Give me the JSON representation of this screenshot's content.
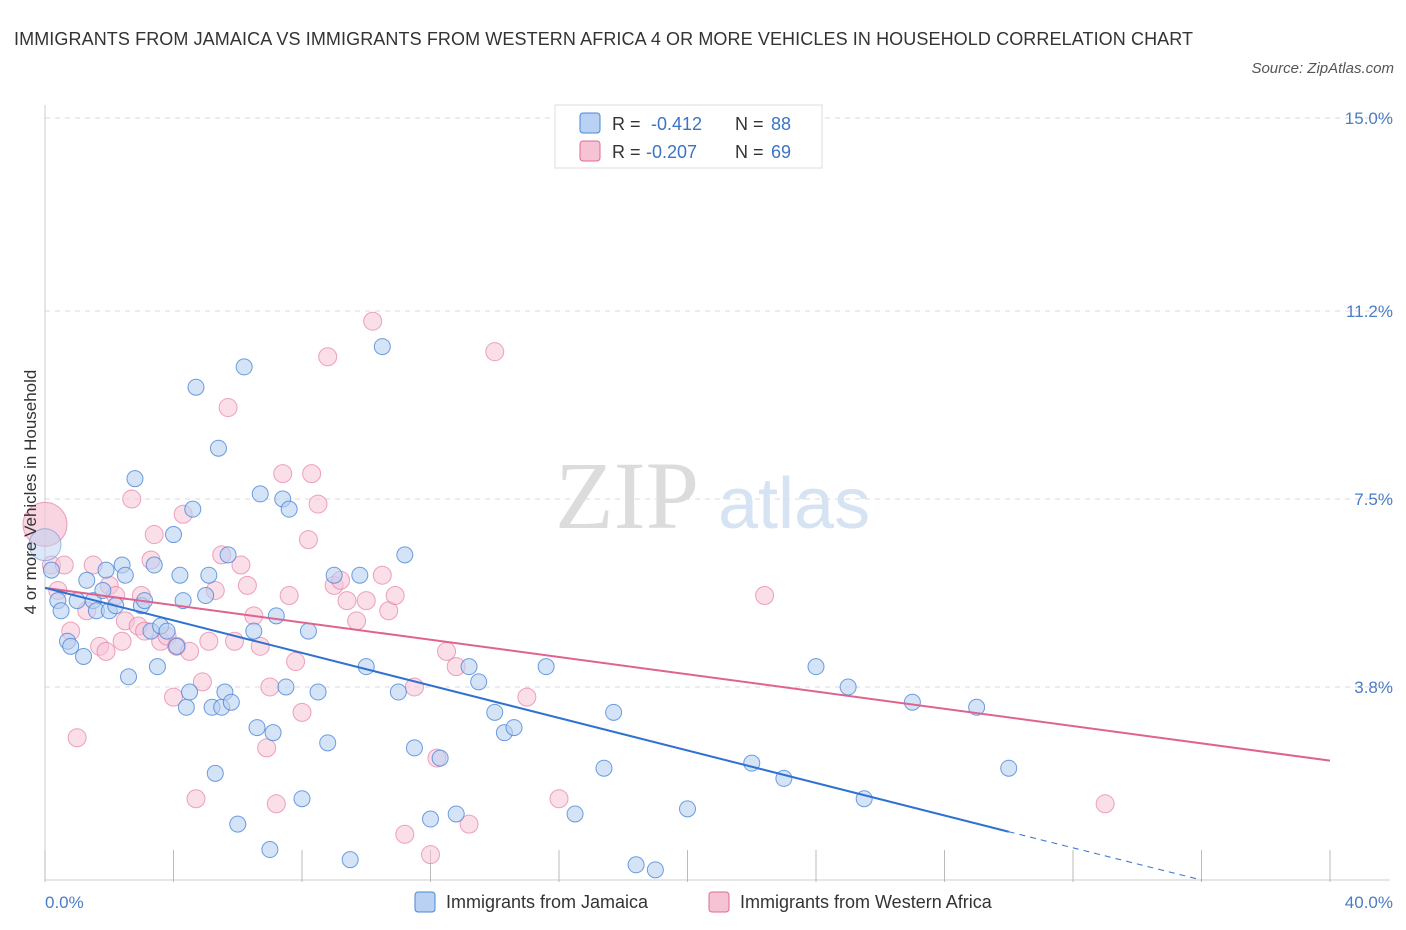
{
  "title": "IMMIGRANTS FROM JAMAICA VS IMMIGRANTS FROM WESTERN AFRICA 4 OR MORE VEHICLES IN HOUSEHOLD CORRELATION CHART",
  "source": "Source: ZipAtlas.com",
  "watermark": {
    "zip": "ZIP",
    "atlas": "atlas"
  },
  "colors": {
    "jamaica": "#4a86d8",
    "jamaica_fill": "#b9d1f2",
    "jamaica_line": "#2f72d0",
    "western_africa": "#e26a96",
    "western_africa_fill": "#f6c3d5",
    "western_africa_line": "#e0628f",
    "tick": "#4a7cc7",
    "grid": "#d9d9d9"
  },
  "legend_box": {
    "rows": [
      {
        "r_label": "R =",
        "r_value": "-0.412",
        "n_label": "N =",
        "n_value": "88"
      },
      {
        "r_label": "R =",
        "r_value": "-0.207",
        "n_label": "N =",
        "n_value": "69"
      }
    ]
  },
  "chart_data": {
    "type": "scatter",
    "xlabel": "",
    "ylabel": "4 or more Vehicles in Household",
    "xlim": [
      0,
      40
    ],
    "ylim": [
      0,
      15
    ],
    "x_tick_labels": [
      "0.0%",
      "40.0%"
    ],
    "y_ticks": [
      3.8,
      7.5,
      11.2,
      15.0
    ],
    "y_tick_labels": [
      "3.8%",
      "7.5%",
      "11.2%",
      "15.0%"
    ],
    "grid": "horizontal dashed",
    "legend_position": "bottom",
    "series": [
      {
        "name": "Immigrants from Jamaica",
        "R": -0.412,
        "N": 88,
        "trend": {
          "x0": 0,
          "y0": 5.75,
          "x1": 30.0,
          "y1": 0.95,
          "dashed_to_x": 36.0,
          "dashed_to_y": 0.0
        },
        "points": [
          [
            0.2,
            6.1
          ],
          [
            0.4,
            5.5
          ],
          [
            0.5,
            5.3
          ],
          [
            0.7,
            4.7
          ],
          [
            0.8,
            4.6
          ],
          [
            1.0,
            5.5
          ],
          [
            1.2,
            4.4
          ],
          [
            1.3,
            5.9
          ],
          [
            1.5,
            5.5
          ],
          [
            1.6,
            5.3
          ],
          [
            1.8,
            5.7
          ],
          [
            1.9,
            6.1
          ],
          [
            2.0,
            5.3
          ],
          [
            2.2,
            5.4
          ],
          [
            2.4,
            6.2
          ],
          [
            2.5,
            6.0
          ],
          [
            2.6,
            4.0
          ],
          [
            2.8,
            7.9
          ],
          [
            3.0,
            5.4
          ],
          [
            3.1,
            5.5
          ],
          [
            3.3,
            4.9
          ],
          [
            3.4,
            6.2
          ],
          [
            3.5,
            4.2
          ],
          [
            3.6,
            5.0
          ],
          [
            3.8,
            4.9
          ],
          [
            4.0,
            6.8
          ],
          [
            4.1,
            4.6
          ],
          [
            4.2,
            6.0
          ],
          [
            4.3,
            5.5
          ],
          [
            4.4,
            3.4
          ],
          [
            4.5,
            3.7
          ],
          [
            4.6,
            7.3
          ],
          [
            4.7,
            9.7
          ],
          [
            5.0,
            5.6
          ],
          [
            5.1,
            6.0
          ],
          [
            5.2,
            3.4
          ],
          [
            5.3,
            2.1
          ],
          [
            5.4,
            8.5
          ],
          [
            5.5,
            3.4
          ],
          [
            5.6,
            3.7
          ],
          [
            5.7,
            6.4
          ],
          [
            5.8,
            3.5
          ],
          [
            6.0,
            1.1
          ],
          [
            6.2,
            10.1
          ],
          [
            6.5,
            4.9
          ],
          [
            6.6,
            3.0
          ],
          [
            6.7,
            7.6
          ],
          [
            7.0,
            0.6
          ],
          [
            7.1,
            2.9
          ],
          [
            7.2,
            5.2
          ],
          [
            7.4,
            7.5
          ],
          [
            7.5,
            3.8
          ],
          [
            7.6,
            7.3
          ],
          [
            8.0,
            1.6
          ],
          [
            8.2,
            4.9
          ],
          [
            8.5,
            3.7
          ],
          [
            8.8,
            2.7
          ],
          [
            9.0,
            6.0
          ],
          [
            9.5,
            0.4
          ],
          [
            9.8,
            6.0
          ],
          [
            10.0,
            4.2
          ],
          [
            10.5,
            10.5
          ],
          [
            11.0,
            3.7
          ],
          [
            11.2,
            6.4
          ],
          [
            11.5,
            2.6
          ],
          [
            12.0,
            1.2
          ],
          [
            12.3,
            2.4
          ],
          [
            12.8,
            1.3
          ],
          [
            13.2,
            4.2
          ],
          [
            13.5,
            3.9
          ],
          [
            14.0,
            3.3
          ],
          [
            14.3,
            2.9
          ],
          [
            14.6,
            3.0
          ],
          [
            15.6,
            4.2
          ],
          [
            16.5,
            1.3
          ],
          [
            17.4,
            2.2
          ],
          [
            17.7,
            3.3
          ],
          [
            18.4,
            0.3
          ],
          [
            19.0,
            0.2
          ],
          [
            20.0,
            1.4
          ],
          [
            22.0,
            2.3
          ],
          [
            23.0,
            2.0
          ],
          [
            24.0,
            4.2
          ],
          [
            25.0,
            3.8
          ],
          [
            25.5,
            1.6
          ],
          [
            27.0,
            3.5
          ],
          [
            29.0,
            3.4
          ],
          [
            30.0,
            2.2
          ]
        ]
      },
      {
        "name": "Immigrants from Western Africa",
        "R": -0.207,
        "N": 69,
        "trend": {
          "x0": 0,
          "y0": 5.75,
          "x1": 40.0,
          "y1": 2.35
        },
        "points": [
          [
            0.2,
            6.2
          ],
          [
            0.4,
            5.7
          ],
          [
            0.6,
            6.2
          ],
          [
            0.8,
            4.9
          ],
          [
            1.0,
            2.8
          ],
          [
            1.3,
            5.3
          ],
          [
            1.5,
            6.2
          ],
          [
            1.7,
            4.6
          ],
          [
            1.9,
            4.5
          ],
          [
            2.0,
            5.8
          ],
          [
            2.2,
            5.6
          ],
          [
            2.4,
            4.7
          ],
          [
            2.5,
            5.1
          ],
          [
            2.7,
            7.5
          ],
          [
            2.9,
            5.0
          ],
          [
            3.0,
            5.6
          ],
          [
            3.1,
            4.9
          ],
          [
            3.3,
            6.3
          ],
          [
            3.4,
            6.8
          ],
          [
            3.6,
            4.7
          ],
          [
            3.8,
            4.8
          ],
          [
            4.0,
            3.6
          ],
          [
            4.1,
            4.6
          ],
          [
            4.3,
            7.2
          ],
          [
            4.5,
            4.5
          ],
          [
            4.7,
            1.6
          ],
          [
            4.9,
            3.9
          ],
          [
            5.1,
            4.7
          ],
          [
            5.3,
            5.7
          ],
          [
            5.5,
            6.4
          ],
          [
            5.7,
            9.3
          ],
          [
            5.9,
            4.7
          ],
          [
            6.1,
            6.2
          ],
          [
            6.3,
            5.8
          ],
          [
            6.5,
            5.2
          ],
          [
            6.7,
            4.6
          ],
          [
            6.9,
            2.6
          ],
          [
            7.0,
            3.8
          ],
          [
            7.2,
            1.5
          ],
          [
            7.4,
            8.0
          ],
          [
            7.6,
            5.6
          ],
          [
            7.8,
            4.3
          ],
          [
            8.0,
            3.3
          ],
          [
            8.2,
            6.7
          ],
          [
            8.3,
            8.0
          ],
          [
            8.5,
            7.4
          ],
          [
            8.8,
            10.3
          ],
          [
            9.0,
            5.8
          ],
          [
            9.2,
            5.9
          ],
          [
            9.4,
            5.5
          ],
          [
            9.7,
            5.1
          ],
          [
            10.0,
            5.5
          ],
          [
            10.2,
            11.0
          ],
          [
            10.5,
            6.0
          ],
          [
            10.7,
            5.3
          ],
          [
            10.9,
            5.6
          ],
          [
            11.2,
            0.9
          ],
          [
            11.5,
            3.8
          ],
          [
            12.0,
            0.5
          ],
          [
            12.2,
            2.4
          ],
          [
            12.5,
            4.5
          ],
          [
            12.8,
            4.2
          ],
          [
            13.2,
            1.1
          ],
          [
            14.0,
            10.4
          ],
          [
            15.0,
            3.6
          ],
          [
            16.0,
            1.6
          ],
          [
            22.4,
            5.6
          ],
          [
            33.0,
            1.5
          ],
          [
            0.0,
            7.0
          ]
        ]
      }
    ]
  },
  "bottom_legend": [
    {
      "label": "Immigrants from Jamaica"
    },
    {
      "label": "Immigrants from Western Africa"
    }
  ]
}
